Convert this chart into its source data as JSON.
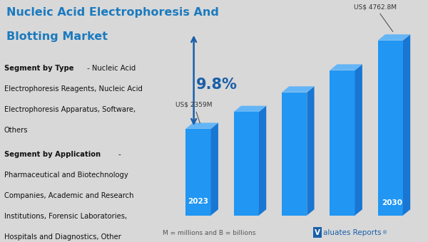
{
  "title_line1": "Nucleic Acid Electrophoresis And",
  "title_line2": "Blotting Market",
  "title_color": "#1a7abf",
  "background_color": "#d8d8d8",
  "bar_color_face": "#2196F3",
  "bar_color_top": "#64B5F6",
  "bar_color_side": "#1976D2",
  "bars": [
    {
      "value": 2359
    },
    {
      "value": 2820
    },
    {
      "value": 3350
    },
    {
      "value": 3950
    },
    {
      "value": 4762.8
    }
  ],
  "start_label": "US$ 2359M",
  "end_label": "US$ 4762.8M",
  "cagr_label": "9.8%",
  "footer_label": "M = millions and B = billions",
  "arrow_color": "#1a5fa8",
  "text_color": "#222222",
  "max_val": 5400,
  "valuates_color": "#1a5fa8"
}
